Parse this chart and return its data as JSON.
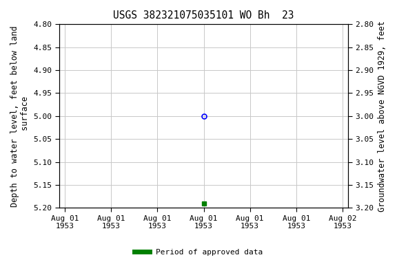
{
  "title": "USGS 382321075035101 WO Bh  23",
  "ylabel_left": "Depth to water level, feet below land\n surface",
  "ylabel_right": "Groundwater level above NGVD 1929, feet",
  "ylim_left": [
    4.8,
    5.2
  ],
  "ylim_right": [
    3.2,
    2.8
  ],
  "yticks_left": [
    4.8,
    4.85,
    4.9,
    4.95,
    5.0,
    5.05,
    5.1,
    5.15,
    5.2
  ],
  "yticks_right": [
    3.2,
    3.15,
    3.1,
    3.05,
    3.0,
    2.95,
    2.9,
    2.85,
    2.8
  ],
  "blue_circle_value": 5.0,
  "green_square_value": 5.19,
  "legend_label": "Period of approved data",
  "legend_color": "#008000",
  "grid_color": "#c8c8c8",
  "background_color": "#ffffff",
  "title_fontsize": 10.5,
  "label_fontsize": 8.5,
  "tick_fontsize": 8.0,
  "font_family": "monospace",
  "n_xticks": 7,
  "xtick_labels": [
    "Aug 01\n1953",
    "Aug 01\n1953",
    "Aug 01\n1953",
    "Aug 01\n1953",
    "Aug 01\n1953",
    "Aug 01\n1953",
    "Aug 02\n1953"
  ]
}
